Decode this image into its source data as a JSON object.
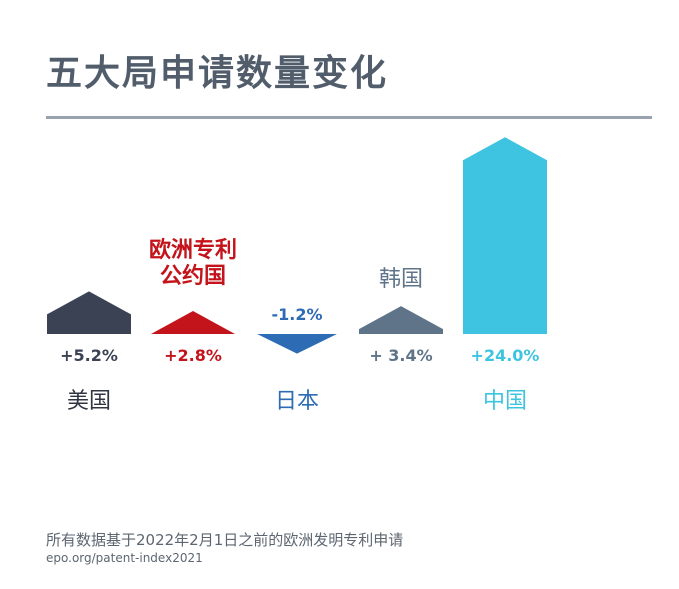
{
  "title": "五大局申请数量变化",
  "footer": {
    "note": "所有数据基于2022年2月1日之前的欧洲发明专利申请",
    "url": "epo.org/patent-index2021"
  },
  "chart_data": {
    "type": "bar",
    "title": "五大局申请数量变化",
    "categories": [
      "美国",
      "欧洲专利公约国",
      "日本",
      "韩国",
      "中国"
    ],
    "values": [
      5.2,
      2.8,
      -1.2,
      3.4,
      24.0
    ],
    "value_labels": [
      "+5.2%",
      "+2.8%",
      "-1.2%",
      "+ 3.4%",
      "+24.0%"
    ],
    "colors": [
      "#3b4254",
      "#c4141b",
      "#2e6bb5",
      "#5f7488",
      "#3ec4e0"
    ],
    "label_lines": [
      [
        "美国"
      ],
      [
        "欧洲专利",
        "公约国"
      ],
      [
        "日本"
      ],
      [
        "韩国"
      ],
      [
        "中国"
      ]
    ],
    "unit": "%",
    "xlabel": "",
    "ylabel": ""
  }
}
